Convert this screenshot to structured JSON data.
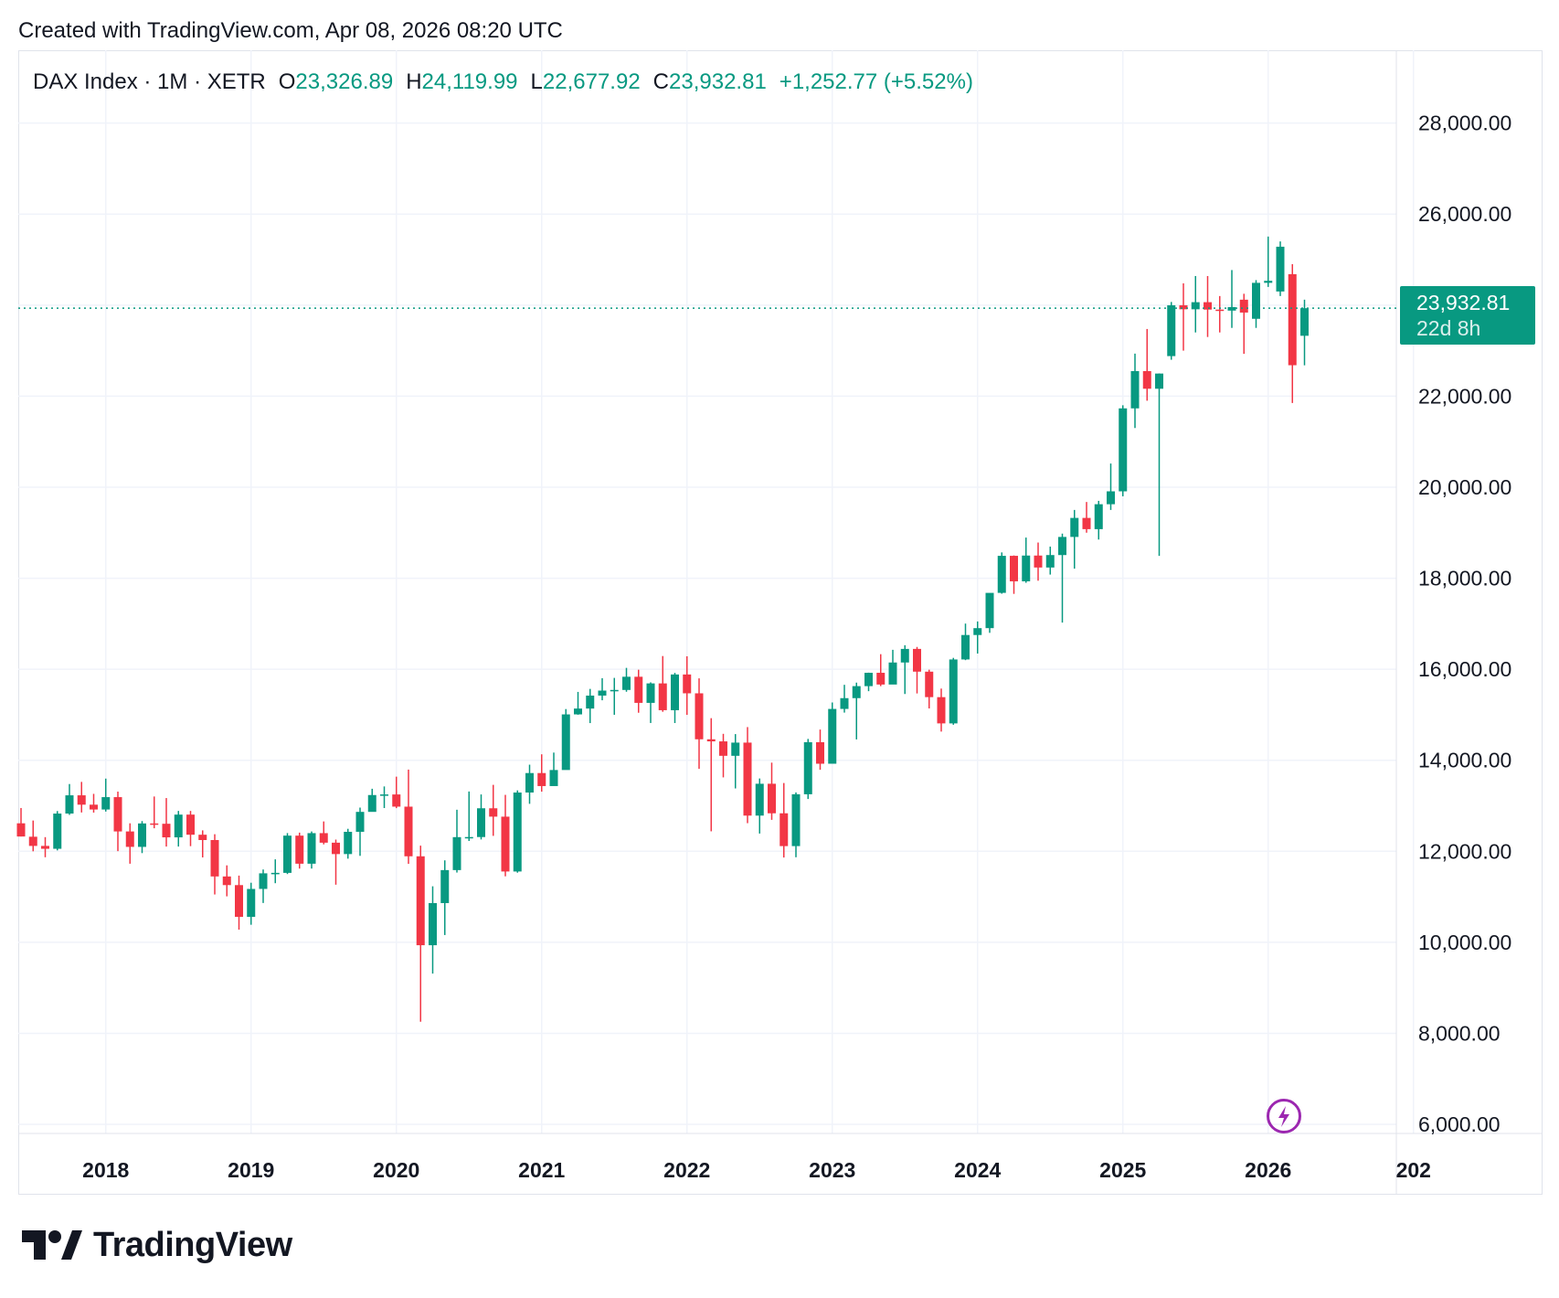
{
  "header": {
    "credit": "Created with TradingView.com, Apr 08, 2026 08:20 UTC"
  },
  "legend": {
    "symbol": "DAX Index · 1M · XETR",
    "open_label": "O",
    "open": "23,326.89",
    "high_label": "H",
    "high": "24,119.99",
    "low_label": "L",
    "low": "22,677.92",
    "close_label": "C",
    "close": "23,932.81",
    "change": "+1,252.77 (+5.52%)"
  },
  "price_tag": {
    "price": "23,932.81",
    "countdown": "22d 8h"
  },
  "brand": {
    "name": "TradingView"
  },
  "colors": {
    "up": "#089981",
    "down": "#f23645",
    "grid": "#f0f3fa",
    "event": "#9c27b0"
  },
  "icons": {
    "event": "flash-icon",
    "logo": "tradingview-logo-icon"
  },
  "chart_data": {
    "type": "candlestick",
    "interval": "1M",
    "ylim": [
      5800,
      29600
    ],
    "y_ticks": [
      "6,000.00",
      "8,000.00",
      "10,000.00",
      "12,000.00",
      "14,000.00",
      "16,000.00",
      "18,000.00",
      "20,000.00",
      "22,000.00",
      "24,000.00",
      "26,000.00",
      "28,000.00"
    ],
    "y_tick_values": [
      6000,
      8000,
      10000,
      12000,
      14000,
      16000,
      18000,
      20000,
      22000,
      24000,
      26000,
      28000
    ],
    "x_labels": [
      "2018",
      "2019",
      "2020",
      "2021",
      "2022",
      "2023",
      "2024",
      "2025",
      "2026",
      "202"
    ],
    "x_label_months": [
      "2018-01",
      "2019-01",
      "2020-01",
      "2021-01",
      "2022-01",
      "2023-01",
      "2024-01",
      "2025-01",
      "2026-01",
      "2027-01"
    ],
    "last_price": 23932.81,
    "grid": true,
    "candles": [
      {
        "t": "2017-06",
        "o": 12615,
        "h": 12951,
        "l": 12325,
        "c": 12325
      },
      {
        "t": "2017-07",
        "o": 12320,
        "h": 12676,
        "l": 12000,
        "c": 12118
      },
      {
        "t": "2017-08",
        "o": 12118,
        "h": 12311,
        "l": 11869,
        "c": 12055
      },
      {
        "t": "2017-09",
        "o": 12055,
        "h": 12884,
        "l": 12020,
        "c": 12829
      },
      {
        "t": "2017-10",
        "o": 12829,
        "h": 13478,
        "l": 12800,
        "c": 13230
      },
      {
        "t": "2017-11",
        "o": 13230,
        "h": 13525,
        "l": 12853,
        "c": 13024
      },
      {
        "t": "2017-12",
        "o": 13024,
        "h": 13262,
        "l": 12850,
        "c": 12918
      },
      {
        "t": "2018-01",
        "o": 12918,
        "h": 13597,
        "l": 12873,
        "c": 13190
      },
      {
        "t": "2018-02",
        "o": 13190,
        "h": 13311,
        "l": 12003,
        "c": 12436
      },
      {
        "t": "2018-03",
        "o": 12436,
        "h": 12615,
        "l": 11727,
        "c": 12097
      },
      {
        "t": "2018-04",
        "o": 12097,
        "h": 12664,
        "l": 11960,
        "c": 12612
      },
      {
        "t": "2018-05",
        "o": 12612,
        "h": 13204,
        "l": 12506,
        "c": 12605
      },
      {
        "t": "2018-06",
        "o": 12605,
        "h": 13170,
        "l": 12104,
        "c": 12306
      },
      {
        "t": "2018-07",
        "o": 12306,
        "h": 12887,
        "l": 12104,
        "c": 12806
      },
      {
        "t": "2018-08",
        "o": 12806,
        "h": 12887,
        "l": 12113,
        "c": 12364
      },
      {
        "t": "2018-09",
        "o": 12364,
        "h": 12460,
        "l": 11865,
        "c": 12247
      },
      {
        "t": "2018-10",
        "o": 12247,
        "h": 12375,
        "l": 11051,
        "c": 11447
      },
      {
        "t": "2018-11",
        "o": 11447,
        "h": 11691,
        "l": 11010,
        "c": 11257
      },
      {
        "t": "2018-12",
        "o": 11257,
        "h": 11466,
        "l": 10279,
        "c": 10559
      },
      {
        "t": "2019-01",
        "o": 10559,
        "h": 11309,
        "l": 10386,
        "c": 11173
      },
      {
        "t": "2019-02",
        "o": 11173,
        "h": 11600,
        "l": 10864,
        "c": 11516
      },
      {
        "t": "2019-03",
        "o": 11516,
        "h": 11823,
        "l": 11299,
        "c": 11526
      },
      {
        "t": "2019-04",
        "o": 11526,
        "h": 12400,
        "l": 11500,
        "c": 12344
      },
      {
        "t": "2019-05",
        "o": 12344,
        "h": 12410,
        "l": 11620,
        "c": 11727
      },
      {
        "t": "2019-06",
        "o": 11727,
        "h": 12436,
        "l": 11620,
        "c": 12399
      },
      {
        "t": "2019-07",
        "o": 12399,
        "h": 12656,
        "l": 12152,
        "c": 12189
      },
      {
        "t": "2019-08",
        "o": 12189,
        "h": 12257,
        "l": 11266,
        "c": 11939
      },
      {
        "t": "2019-09",
        "o": 11939,
        "h": 12494,
        "l": 11838,
        "c": 12428
      },
      {
        "t": "2019-10",
        "o": 12428,
        "h": 12960,
        "l": 11900,
        "c": 12866
      },
      {
        "t": "2019-11",
        "o": 12866,
        "h": 13374,
        "l": 12880,
        "c": 13236
      },
      {
        "t": "2019-12",
        "o": 13236,
        "h": 13425,
        "l": 12950,
        "c": 13249
      },
      {
        "t": "2020-01",
        "o": 13249,
        "h": 13640,
        "l": 12948,
        "c": 12981
      },
      {
        "t": "2020-02",
        "o": 12981,
        "h": 13795,
        "l": 11724,
        "c": 11890
      },
      {
        "t": "2020-03",
        "o": 11890,
        "h": 12125,
        "l": 8256,
        "c": 9936
      },
      {
        "t": "2020-04",
        "o": 9936,
        "h": 11231,
        "l": 9313,
        "c": 10862
      },
      {
        "t": "2020-05",
        "o": 10862,
        "h": 11801,
        "l": 10160,
        "c": 11587
      },
      {
        "t": "2020-06",
        "o": 11587,
        "h": 12913,
        "l": 11533,
        "c": 12311
      },
      {
        "t": "2020-07",
        "o": 12311,
        "h": 13314,
        "l": 12227,
        "c": 12313
      },
      {
        "t": "2020-08",
        "o": 12313,
        "h": 13249,
        "l": 12260,
        "c": 12945
      },
      {
        "t": "2020-09",
        "o": 12945,
        "h": 13460,
        "l": 12339,
        "c": 12761
      },
      {
        "t": "2020-10",
        "o": 12761,
        "h": 13240,
        "l": 11450,
        "c": 11556
      },
      {
        "t": "2020-11",
        "o": 11556,
        "h": 13338,
        "l": 11530,
        "c": 13291
      },
      {
        "t": "2020-12",
        "o": 13291,
        "h": 13903,
        "l": 13043,
        "c": 13719
      },
      {
        "t": "2021-01",
        "o": 13719,
        "h": 14131,
        "l": 13310,
        "c": 13433
      },
      {
        "t": "2021-02",
        "o": 13433,
        "h": 14169,
        "l": 13475,
        "c": 13786
      },
      {
        "t": "2021-03",
        "o": 13786,
        "h": 15125,
        "l": 13858,
        "c": 15008
      },
      {
        "t": "2021-04",
        "o": 15008,
        "h": 15502,
        "l": 15000,
        "c": 15136
      },
      {
        "t": "2021-05",
        "o": 15136,
        "h": 15568,
        "l": 14817,
        "c": 15421
      },
      {
        "t": "2021-06",
        "o": 15421,
        "h": 15803,
        "l": 15318,
        "c": 15531
      },
      {
        "t": "2021-07",
        "o": 15531,
        "h": 15810,
        "l": 14999,
        "c": 15545
      },
      {
        "t": "2021-08",
        "o": 15545,
        "h": 16030,
        "l": 15505,
        "c": 15835
      },
      {
        "t": "2021-09",
        "o": 15835,
        "h": 15990,
        "l": 15044,
        "c": 15261
      },
      {
        "t": "2021-10",
        "o": 15261,
        "h": 15712,
        "l": 14819,
        "c": 15689
      },
      {
        "t": "2021-11",
        "o": 15689,
        "h": 16290,
        "l": 15065,
        "c": 15100
      },
      {
        "t": "2021-12",
        "o": 15100,
        "h": 15920,
        "l": 14818,
        "c": 15885
      },
      {
        "t": "2022-01",
        "o": 15885,
        "h": 16285,
        "l": 14997,
        "c": 15471
      },
      {
        "t": "2022-02",
        "o": 15471,
        "h": 15800,
        "l": 13811,
        "c": 14461
      },
      {
        "t": "2022-03",
        "o": 14461,
        "h": 14925,
        "l": 12439,
        "c": 14415
      },
      {
        "t": "2022-04",
        "o": 14415,
        "h": 14581,
        "l": 13624,
        "c": 14098
      },
      {
        "t": "2022-05",
        "o": 14098,
        "h": 14575,
        "l": 13381,
        "c": 14388
      },
      {
        "t": "2022-06",
        "o": 14388,
        "h": 14729,
        "l": 12618,
        "c": 12784
      },
      {
        "t": "2022-07",
        "o": 12784,
        "h": 13600,
        "l": 12390,
        "c": 13484
      },
      {
        "t": "2022-08",
        "o": 13484,
        "h": 13948,
        "l": 12691,
        "c": 12835
      },
      {
        "t": "2022-09",
        "o": 12835,
        "h": 13500,
        "l": 11863,
        "c": 12114
      },
      {
        "t": "2022-10",
        "o": 12114,
        "h": 13293,
        "l": 11869,
        "c": 13253
      },
      {
        "t": "2022-11",
        "o": 13253,
        "h": 14469,
        "l": 13149,
        "c": 14397
      },
      {
        "t": "2022-12",
        "o": 14397,
        "h": 14675,
        "l": 13791,
        "c": 13924
      },
      {
        "t": "2023-01",
        "o": 13924,
        "h": 15270,
        "l": 13976,
        "c": 15128
      },
      {
        "t": "2023-02",
        "o": 15128,
        "h": 15658,
        "l": 15047,
        "c": 15365
      },
      {
        "t": "2023-03",
        "o": 15365,
        "h": 15706,
        "l": 14458,
        "c": 15629
      },
      {
        "t": "2023-04",
        "o": 15629,
        "h": 15925,
        "l": 15518,
        "c": 15922
      },
      {
        "t": "2023-05",
        "o": 15922,
        "h": 16331,
        "l": 15629,
        "c": 15664
      },
      {
        "t": "2023-06",
        "o": 15664,
        "h": 16427,
        "l": 15734,
        "c": 16148
      },
      {
        "t": "2023-07",
        "o": 16148,
        "h": 16528,
        "l": 15456,
        "c": 16447
      },
      {
        "t": "2023-08",
        "o": 16447,
        "h": 16490,
        "l": 15468,
        "c": 15947
      },
      {
        "t": "2023-09",
        "o": 15947,
        "h": 15990,
        "l": 15138,
        "c": 15387
      },
      {
        "t": "2023-10",
        "o": 15387,
        "h": 15575,
        "l": 14630,
        "c": 14810
      },
      {
        "t": "2023-11",
        "o": 14810,
        "h": 16250,
        "l": 14780,
        "c": 16215
      },
      {
        "t": "2023-12",
        "o": 16215,
        "h": 17003,
        "l": 16200,
        "c": 16752
      },
      {
        "t": "2024-01",
        "o": 16752,
        "h": 17050,
        "l": 16345,
        "c": 16903
      },
      {
        "t": "2024-02",
        "o": 16903,
        "h": 17590,
        "l": 16800,
        "c": 17678
      },
      {
        "t": "2024-03",
        "o": 17678,
        "h": 18567,
        "l": 17660,
        "c": 18492
      },
      {
        "t": "2024-04",
        "o": 18492,
        "h": 18500,
        "l": 17656,
        "c": 17932
      },
      {
        "t": "2024-05",
        "o": 17932,
        "h": 18893,
        "l": 17900,
        "c": 18498
      },
      {
        "t": "2024-06",
        "o": 18498,
        "h": 18784,
        "l": 17945,
        "c": 18235
      },
      {
        "t": "2024-07",
        "o": 18235,
        "h": 18695,
        "l": 18080,
        "c": 18509
      },
      {
        "t": "2024-08",
        "o": 18509,
        "h": 18980,
        "l": 17025,
        "c": 18907
      },
      {
        "t": "2024-09",
        "o": 18907,
        "h": 19500,
        "l": 18210,
        "c": 19325
      },
      {
        "t": "2024-10",
        "o": 19325,
        "h": 19675,
        "l": 19000,
        "c": 19078
      },
      {
        "t": "2024-11",
        "o": 19078,
        "h": 19700,
        "l": 18850,
        "c": 19626
      },
      {
        "t": "2024-12",
        "o": 19626,
        "h": 20520,
        "l": 19500,
        "c": 19909
      },
      {
        "t": "2025-01",
        "o": 19909,
        "h": 21800,
        "l": 19800,
        "c": 21732
      },
      {
        "t": "2025-02",
        "o": 21732,
        "h": 22935,
        "l": 21300,
        "c": 22551
      },
      {
        "t": "2025-03",
        "o": 22551,
        "h": 23476,
        "l": 21900,
        "c": 22163
      },
      {
        "t": "2025-04",
        "o": 22163,
        "h": 22500,
        "l": 18490,
        "c": 22497
      },
      {
        "t": "2025-05",
        "o": 22880,
        "h": 24070,
        "l": 22800,
        "c": 23997
      },
      {
        "t": "2025-06",
        "o": 23997,
        "h": 24479,
        "l": 23000,
        "c": 23909
      },
      {
        "t": "2025-07",
        "o": 23909,
        "h": 24640,
        "l": 23400,
        "c": 24065
      },
      {
        "t": "2025-08",
        "o": 24065,
        "h": 24639,
        "l": 23300,
        "c": 23902
      },
      {
        "t": "2025-09",
        "o": 23902,
        "h": 24200,
        "l": 23400,
        "c": 23880
      },
      {
        "t": "2025-10",
        "o": 23880,
        "h": 24771,
        "l": 23500,
        "c": 23958
      },
      {
        "t": "2025-11",
        "o": 24120,
        "h": 24250,
        "l": 22930,
        "c": 23837
      },
      {
        "t": "2025-12",
        "o": 23700,
        "h": 24550,
        "l": 23500,
        "c": 24490
      },
      {
        "t": "2026-01",
        "o": 24490,
        "h": 25507,
        "l": 24400,
        "c": 24535
      },
      {
        "t": "2026-02",
        "o": 24300,
        "h": 25400,
        "l": 24200,
        "c": 25284
      },
      {
        "t": "2026-03",
        "o": 24680,
        "h": 24900,
        "l": 21850,
        "c": 22680
      },
      {
        "t": "2026-04",
        "o": 23326.89,
        "h": 24119.99,
        "l": 22677.92,
        "c": 23932.81
      }
    ]
  }
}
